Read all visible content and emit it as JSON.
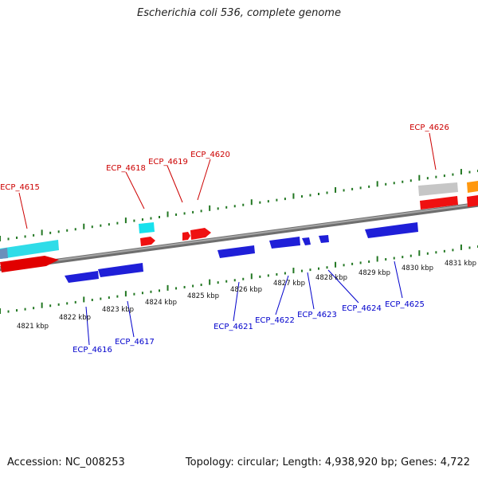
{
  "title": "Escherichia coli 536, complete genome",
  "footer": {
    "accession": "Accession: NC_008253",
    "summary": "Topology: circular; Length: 4,938,920 bp; Genes: 4,722"
  },
  "colors": {
    "forward_label": "#cc0000",
    "reverse_label": "#0000cc",
    "tick": "#227722",
    "backbone": "#8a8a8a",
    "gene_red": "#ff1a1a",
    "gene_blue": "#1f1fe6",
    "gene_cyan": "#22e5f0",
    "gene_gray": "#c8c8c8",
    "gene_orange": "#ff9a1a",
    "gene_steel": "#5f87b8"
  },
  "scale_labels": [
    "4821 kbp",
    "4822 kbp",
    "4823 kbp",
    "4824 kbp",
    "4825 kbp",
    "4826 kbp",
    "4827 kbp",
    "4828 kbp",
    "4829 kbp",
    "4830 kbp",
    "4831 kbp"
  ],
  "forward_genes": [
    {
      "label": "ECP_4615"
    },
    {
      "label": "ECP_4618"
    },
    {
      "label": "ECP_4619"
    },
    {
      "label": "ECP_4620"
    },
    {
      "label": "ECP_4626"
    }
  ],
  "reverse_genes": [
    {
      "label": "ECP_4616"
    },
    {
      "label": "ECP_4617"
    },
    {
      "label": "ECP_4621"
    },
    {
      "label": "ECP_4622"
    },
    {
      "label": "ECP_4623"
    },
    {
      "label": "ECP_4624"
    },
    {
      "label": "ECP_4625"
    }
  ]
}
